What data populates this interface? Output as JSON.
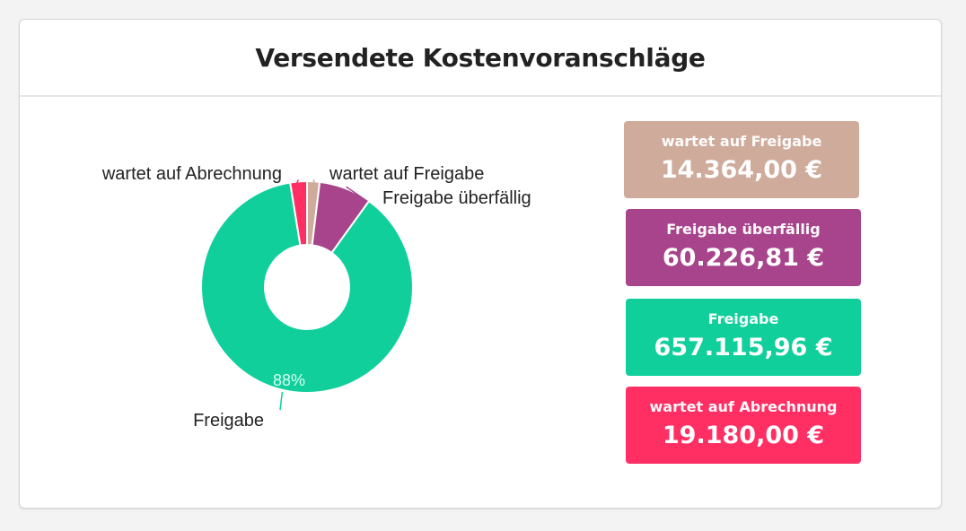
{
  "header": {
    "title": "Versendete Kostenvoranschläge"
  },
  "chart_data": {
    "type": "pie",
    "title": "Versendete Kostenvoranschläge",
    "donut": true,
    "categories": [
      "wartet auf Freigabe",
      "Freigabe überfällig",
      "Freigabe",
      "wartet auf Abrechnung"
    ],
    "values": [
      14364.0,
      60226.81,
      657115.96,
      19180.0
    ],
    "colors": [
      "#cfab9b",
      "#a8448c",
      "#10cf9b",
      "#ff2f64"
    ],
    "slice_labels": [
      "",
      "",
      "88%",
      ""
    ],
    "legend": "none"
  },
  "kpis": [
    {
      "label": "wartet auf Freigabe",
      "value": "14.364,00 €",
      "color": "#cfab9b"
    },
    {
      "label": "Freigabe überfällig",
      "value": "60.226,81 €",
      "color": "#a8448c"
    },
    {
      "label": "Freigabe",
      "value": "657.115,96 €",
      "color": "#10cf9b"
    },
    {
      "label": "wartet auf Abrechnung",
      "value": "19.180,00 €",
      "color": "#ff2f64"
    }
  ]
}
